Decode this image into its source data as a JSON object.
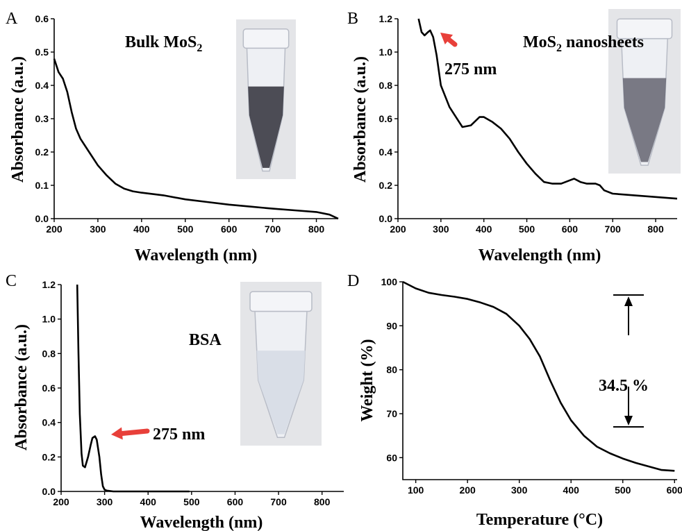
{
  "chart_data": [
    {
      "panel": "A",
      "type": "line",
      "xlabel": "Wavelength (nm)",
      "ylabel": "Absorbance (a.u.)",
      "xlim": [
        200,
        850
      ],
      "ylim": [
        0,
        0.6
      ],
      "xticks": [
        200,
        300,
        400,
        500,
        600,
        700,
        800
      ],
      "yticks": [
        0.0,
        0.1,
        0.2,
        0.3,
        0.4,
        0.5,
        0.6
      ],
      "annotation": "Bulk MoS₂",
      "series": [
        {
          "x": [
            200,
            210,
            220,
            230,
            240,
            250,
            260,
            280,
            300,
            320,
            340,
            360,
            380,
            400,
            450,
            500,
            550,
            600,
            650,
            700,
            750,
            800,
            830,
            850
          ],
          "y": [
            0.48,
            0.44,
            0.42,
            0.38,
            0.32,
            0.27,
            0.24,
            0.2,
            0.16,
            0.13,
            0.105,
            0.09,
            0.082,
            0.078,
            0.07,
            0.058,
            0.05,
            0.042,
            0.036,
            0.03,
            0.025,
            0.02,
            0.012,
            0.0
          ]
        }
      ]
    },
    {
      "panel": "B",
      "type": "line",
      "xlabel": "Wavelength (nm)",
      "ylabel": "Absorbance (a.u.)",
      "xlim": [
        200,
        850
      ],
      "ylim": [
        0,
        1.2
      ],
      "xticks": [
        200,
        300,
        400,
        500,
        600,
        700,
        800
      ],
      "yticks": [
        0.0,
        0.2,
        0.4,
        0.6,
        0.8,
        1.0,
        1.2
      ],
      "annotation": "MoS₂ nanosheets",
      "peak_label": "275 nm",
      "series": [
        {
          "x": [
            248,
            255,
            262,
            270,
            275,
            282,
            290,
            300,
            320,
            340,
            350,
            370,
            390,
            400,
            420,
            440,
            460,
            480,
            500,
            520,
            540,
            560,
            580,
            600,
            610,
            625,
            640,
            660,
            670,
            680,
            700,
            750,
            800,
            850
          ],
          "y": [
            1.2,
            1.12,
            1.1,
            1.12,
            1.13,
            1.09,
            0.98,
            0.8,
            0.67,
            0.59,
            0.55,
            0.56,
            0.61,
            0.61,
            0.58,
            0.54,
            0.48,
            0.4,
            0.33,
            0.27,
            0.22,
            0.21,
            0.21,
            0.23,
            0.24,
            0.22,
            0.21,
            0.21,
            0.2,
            0.17,
            0.15,
            0.14,
            0.13,
            0.12
          ]
        }
      ]
    },
    {
      "panel": "C",
      "type": "line",
      "xlabel": "Wavelength (nm)",
      "ylabel": "Absorbance (a.u.)",
      "xlim": [
        200,
        850
      ],
      "ylim": [
        0,
        1.2
      ],
      "xticks": [
        200,
        300,
        400,
        500,
        600,
        700,
        800
      ],
      "yticks": [
        0.0,
        0.2,
        0.4,
        0.6,
        0.8,
        1.0,
        1.2
      ],
      "annotation": "BSA",
      "peak_label": "275 nm",
      "series": [
        {
          "x": [
            237,
            240,
            243,
            247,
            250,
            255,
            262,
            268,
            272,
            278,
            282,
            288,
            292,
            296,
            300,
            305,
            320,
            350,
            400,
            495
          ],
          "y": [
            1.2,
            0.8,
            0.45,
            0.22,
            0.15,
            0.14,
            0.2,
            0.27,
            0.31,
            0.32,
            0.3,
            0.2,
            0.1,
            0.03,
            0.01,
            0.005,
            0.0,
            0.0,
            0.0,
            0.0
          ]
        }
      ]
    },
    {
      "panel": "D",
      "type": "line",
      "xlabel": "Temperature (°C)",
      "ylabel": "Weight (%)",
      "xlim": [
        75,
        605
      ],
      "ylim": [
        55,
        100
      ],
      "xticks": [
        100,
        200,
        300,
        400,
        500,
        600
      ],
      "yticks": [
        60,
        70,
        80,
        90,
        100
      ],
      "annotation": "34.5 %",
      "arrow_levels": [
        97,
        67
      ],
      "series": [
        {
          "x": [
            75,
            100,
            125,
            150,
            175,
            200,
            225,
            250,
            275,
            300,
            320,
            340,
            360,
            380,
            400,
            425,
            450,
            475,
            500,
            525,
            550,
            575,
            600
          ],
          "y": [
            100,
            98.5,
            97.5,
            97,
            96.6,
            96.1,
            95.3,
            94.3,
            92.7,
            90,
            87,
            83,
            77.5,
            72.5,
            68.5,
            65,
            62.5,
            61,
            59.8,
            58.8,
            58,
            57.2,
            57
          ]
        }
      ]
    }
  ]
}
